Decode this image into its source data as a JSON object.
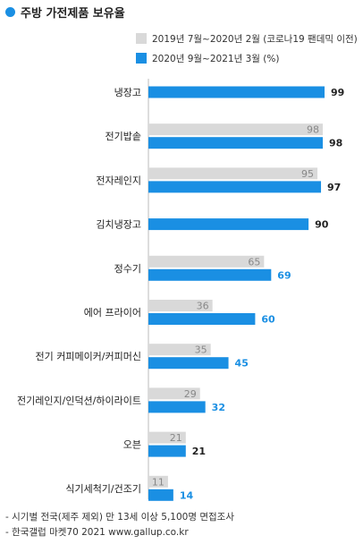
{
  "header": {
    "title": "주방 가전제품 보유율"
  },
  "colors": {
    "accent": "#1a8fe3",
    "previous": "#d9d9d9"
  },
  "legend": [
    {
      "label": "2019년 7월~2020년 2월 (코로나19 팬데믹 이전)",
      "color": "#d9d9d9"
    },
    {
      "label": "2020년 9월~2021년 3월 (%)",
      "color": "#1a8fe3"
    }
  ],
  "chart_data": {
    "type": "bar",
    "orientation": "horizontal",
    "title": "주방 가전제품 보유율",
    "categories": [
      "냉장고",
      "전기밥솥",
      "전자레인지",
      "김치냉장고",
      "정수기",
      "에어 프라이어",
      "전기 커피메이커/커피머신",
      "전기레인지/인덕션/하이라이트",
      "오븐",
      "식기세척기/건조기"
    ],
    "series": [
      {
        "name": "2019년 7월~2020년 2월 (코로나19 팬데믹 이전)",
        "color": "#d9d9d9",
        "values": [
          null,
          98,
          95,
          null,
          65,
          36,
          35,
          29,
          21,
          11
        ]
      },
      {
        "name": "2020년 9월~2021년 3월 (%)",
        "color": "#1a8fe3",
        "values": [
          99,
          98,
          97,
          90,
          69,
          60,
          45,
          32,
          21,
          14
        ]
      }
    ],
    "value_label_colors": {
      "current": [
        "#222222",
        "#222222",
        "#222222",
        "#222222",
        "#1a8fe3",
        "#1a8fe3",
        "#1a8fe3",
        "#1a8fe3",
        "#222222",
        "#1a8fe3"
      ],
      "previous": "#888888"
    },
    "xlim": [
      0,
      100
    ],
    "grid": false,
    "legend_position": "top-right"
  },
  "footnotes": [
    "- 시기별 전국(제주 제외) 만 13세 이상 5,100명 면접조사",
    "- 한국갤럽 마켓70 2021 www.gallup.co.kr"
  ]
}
